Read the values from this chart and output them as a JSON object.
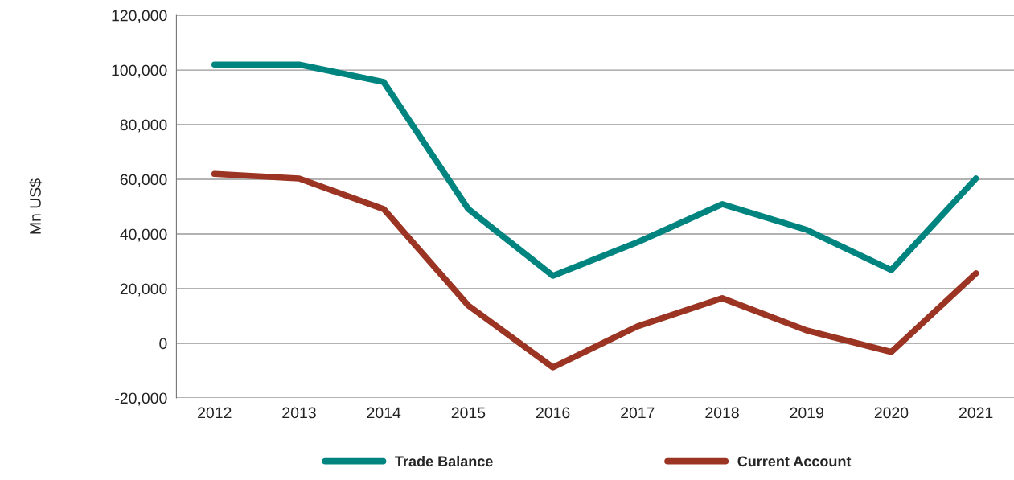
{
  "chart_data": {
    "type": "line",
    "ylabel": "Mn US$",
    "categories": [
      "2012",
      "2013",
      "2014",
      "2015",
      "2016",
      "2017",
      "2018",
      "2019",
      "2020",
      "2021"
    ],
    "series": [
      {
        "name": "Trade Balance",
        "color": "#00847f",
        "values": [
          102000,
          102000,
          95600,
          49100,
          24700,
          37000,
          50900,
          41500,
          26800,
          60300
        ]
      },
      {
        "name": "Current Account",
        "color": "#9b3422",
        "values": [
          62000,
          60300,
          49100,
          13800,
          -8800,
          6200,
          16500,
          4700,
          -3200,
          25600
        ]
      }
    ],
    "ylim": [
      -20000,
      120000
    ],
    "yticks": [
      {
        "value": -20000,
        "label": "-20,000"
      },
      {
        "value": 0,
        "label": "0"
      },
      {
        "value": 20000,
        "label": "20,000"
      },
      {
        "value": 40000,
        "label": "40,000"
      },
      {
        "value": 60000,
        "label": "60,000"
      },
      {
        "value": 80000,
        "label": "80,000"
      },
      {
        "value": 100000,
        "label": "100,000"
      },
      {
        "value": 120000,
        "label": "120,000"
      }
    ],
    "grid": "y",
    "legend": "bottom",
    "line_style": "solid"
  }
}
